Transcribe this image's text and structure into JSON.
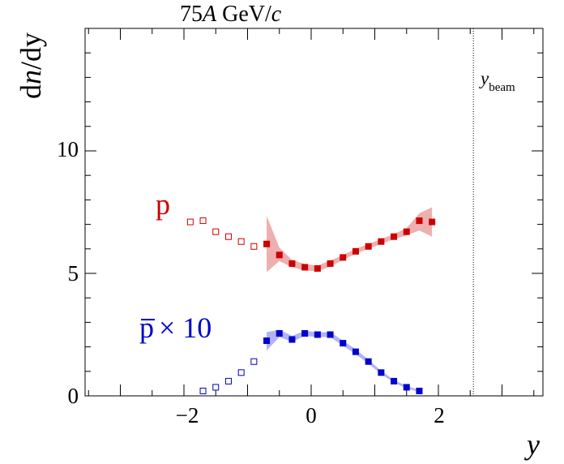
{
  "chart_data": {
    "type": "scatter",
    "title": "75A GeV/c",
    "title_parts": {
      "prefix": "75",
      "italic_a": "A",
      "mid": " GeV/",
      "italic_c": "c"
    },
    "xlabel": "y",
    "ylabel_parts": {
      "d1": "d",
      "n": "n",
      "slash_d": "/d",
      "y": "y"
    },
    "xlim": [
      -3.5,
      3.5
    ],
    "ylim": [
      0,
      15
    ],
    "xticks": [
      -2,
      0,
      2
    ],
    "xtick_labels": [
      "−2",
      "0",
      "2"
    ],
    "yticks": [
      0,
      5,
      10
    ],
    "ytick_labels": [
      "0",
      "5",
      "10"
    ],
    "beam_line": {
      "x": 2.55,
      "label": "y",
      "label_sub": "beam"
    },
    "series": [
      {
        "name": "p",
        "label": "p",
        "color": "#cc0000",
        "band_color": "#e89494",
        "measured": {
          "x": [
            -0.7,
            -0.5,
            -0.3,
            -0.1,
            0.1,
            0.3,
            0.5,
            0.7,
            0.9,
            1.1,
            1.3,
            1.5,
            1.7,
            1.9
          ],
          "y": [
            6.2,
            5.75,
            5.4,
            5.25,
            5.2,
            5.4,
            5.65,
            5.9,
            6.1,
            6.3,
            6.5,
            6.7,
            7.15,
            7.1
          ]
        },
        "reflected": {
          "x": [
            -1.9,
            -1.7,
            -1.5,
            -1.3,
            -1.1,
            -0.9
          ],
          "y": [
            7.1,
            7.15,
            6.7,
            6.5,
            6.3,
            6.1
          ]
        },
        "band": {
          "x": [
            -0.7,
            -0.5,
            -0.3,
            -0.1,
            0.1,
            0.3,
            0.5,
            0.7,
            0.9,
            1.1,
            1.3,
            1.5,
            1.7,
            1.9
          ],
          "low": [
            5.05,
            5.5,
            5.25,
            5.12,
            5.08,
            5.28,
            5.55,
            5.8,
            6.0,
            6.2,
            6.4,
            6.55,
            6.75,
            6.5
          ],
          "high": [
            7.35,
            6.05,
            5.55,
            5.38,
            5.32,
            5.52,
            5.75,
            6.0,
            6.2,
            6.4,
            6.6,
            6.85,
            7.45,
            7.7
          ]
        }
      },
      {
        "name": "pbar",
        "label": "p̄ × 10",
        "label_parts": {
          "p": "p",
          "times": "× 10"
        },
        "color": "#0000cc",
        "band_color": "#9a9af0",
        "measured": {
          "x": [
            -0.7,
            -0.5,
            -0.3,
            -0.1,
            0.1,
            0.3,
            0.5,
            0.7,
            0.9,
            1.1,
            1.3,
            1.5,
            1.7
          ],
          "y": [
            2.25,
            2.55,
            2.3,
            2.55,
            2.5,
            2.5,
            2.15,
            1.8,
            1.4,
            0.95,
            0.6,
            0.35,
            0.2
          ]
        },
        "reflected": {
          "x": [
            -1.7,
            -1.5,
            -1.3,
            -1.1,
            -0.9
          ],
          "y": [
            0.2,
            0.35,
            0.6,
            0.95,
            1.4
          ]
        },
        "band": {
          "x": [
            -0.7,
            -0.5,
            -0.3,
            -0.1,
            0.1,
            0.3,
            0.5,
            0.7,
            0.9,
            1.1,
            1.3,
            1.5,
            1.7
          ],
          "low": [
            1.85,
            2.4,
            2.2,
            2.45,
            2.4,
            2.4,
            2.05,
            1.7,
            1.32,
            0.88,
            0.55,
            0.3,
            0.16
          ],
          "high": [
            2.6,
            2.7,
            2.45,
            2.65,
            2.6,
            2.6,
            2.25,
            1.9,
            1.48,
            1.02,
            0.65,
            0.4,
            0.24
          ]
        }
      }
    ]
  }
}
